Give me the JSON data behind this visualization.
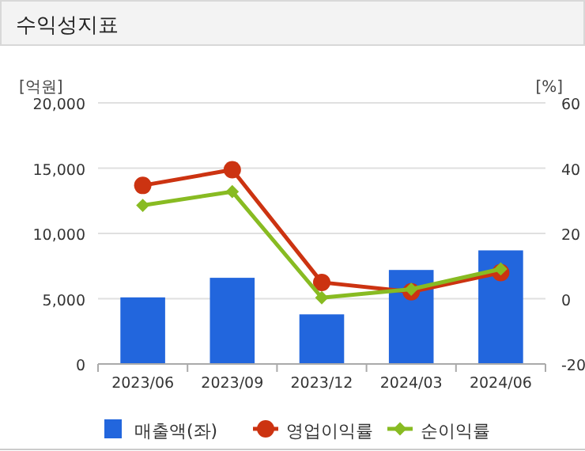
{
  "chart_data": {
    "type": "bar",
    "title": "수익성지표",
    "ylabel": "[억원]",
    "y2label": "[%]",
    "categories": [
      "2023/06",
      "2023/09",
      "2023/12",
      "2024/03",
      "2024/06"
    ],
    "series": [
      {
        "name": "매출액(좌)",
        "color": "#2266dd",
        "values": [
          5100,
          6600,
          3800,
          7200,
          8700
        ]
      },
      {
        "name": "영업이익률",
        "type": "line",
        "axis": "y2",
        "color": "#cc3311",
        "marker": "circle",
        "values": [
          34.7,
          39.5,
          5,
          2.1,
          8
        ]
      },
      {
        "name": "순이익률",
        "type": "line",
        "axis": "y2",
        "color": "#88bb22",
        "marker": "diamond",
        "values": [
          28.6,
          32.8,
          0.3,
          2.9,
          9.1
        ]
      }
    ],
    "ylim": [
      0,
      20000
    ],
    "yticks": [
      {
        "value": 0,
        "label": "0"
      },
      {
        "value": 5000,
        "label": "5,000"
      },
      {
        "value": 10000,
        "label": "10,000"
      },
      {
        "value": 15000,
        "label": "15,000"
      },
      {
        "value": 20000,
        "label": "20,000"
      }
    ],
    "y2lim": [
      -20,
      60
    ],
    "y2ticks": [
      -20,
      0,
      20,
      40,
      60
    ],
    "grid": "y",
    "legend": "bottom"
  }
}
